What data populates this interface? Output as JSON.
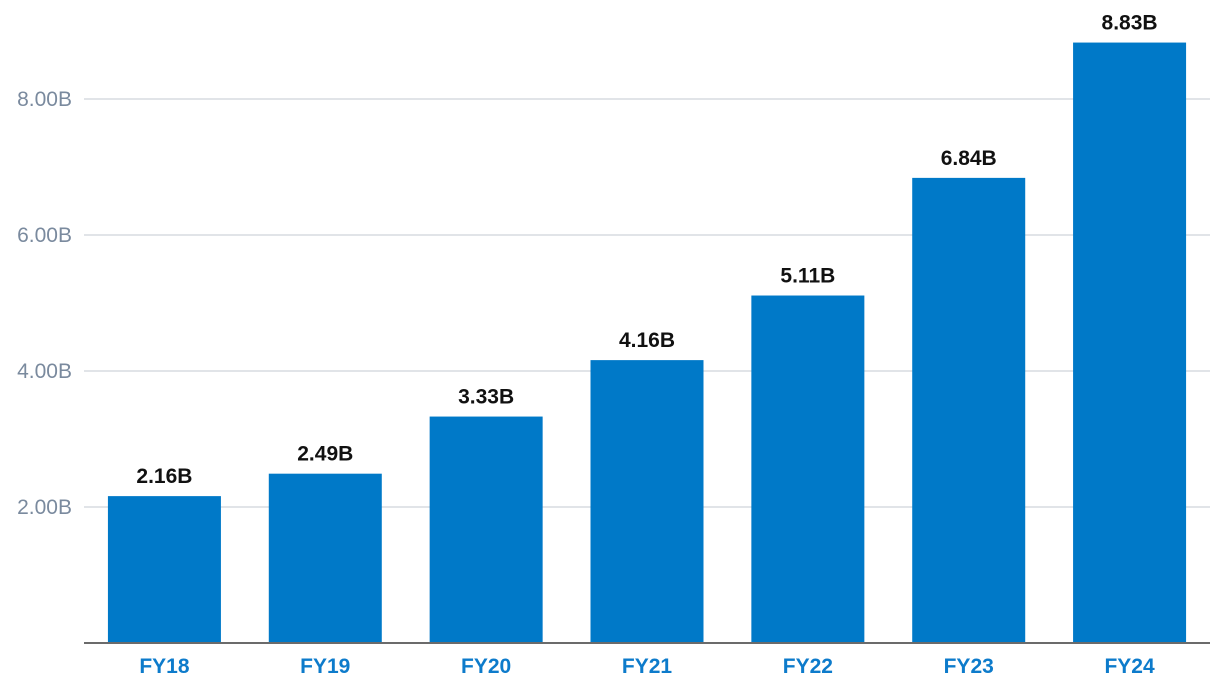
{
  "chart_data": {
    "type": "bar",
    "title": "",
    "xlabel": "",
    "ylabel": "",
    "categories": [
      "FY18",
      "FY19",
      "FY20",
      "FY21",
      "FY22",
      "FY23",
      "FY24"
    ],
    "values": [
      2.16,
      2.49,
      3.33,
      4.16,
      5.11,
      6.84,
      8.83
    ],
    "value_labels": [
      "2.16B",
      "2.49B",
      "3.33B",
      "4.16B",
      "5.11B",
      "6.84B",
      "8.83B"
    ],
    "ylim": [
      0,
      9.5
    ],
    "yticks": [
      2,
      4,
      6,
      8
    ],
    "ytick_labels": [
      "2.00B",
      "4.00B",
      "6.00B",
      "8.00B"
    ],
    "grid": true,
    "colors": {
      "bar": "#0079c8",
      "x_tick_text": "#0d7bcb",
      "y_tick_text": "#7a8a9e",
      "data_label_text": "#111111",
      "gridline": "#d7dbe0",
      "axis": "#6b6b6b"
    }
  }
}
